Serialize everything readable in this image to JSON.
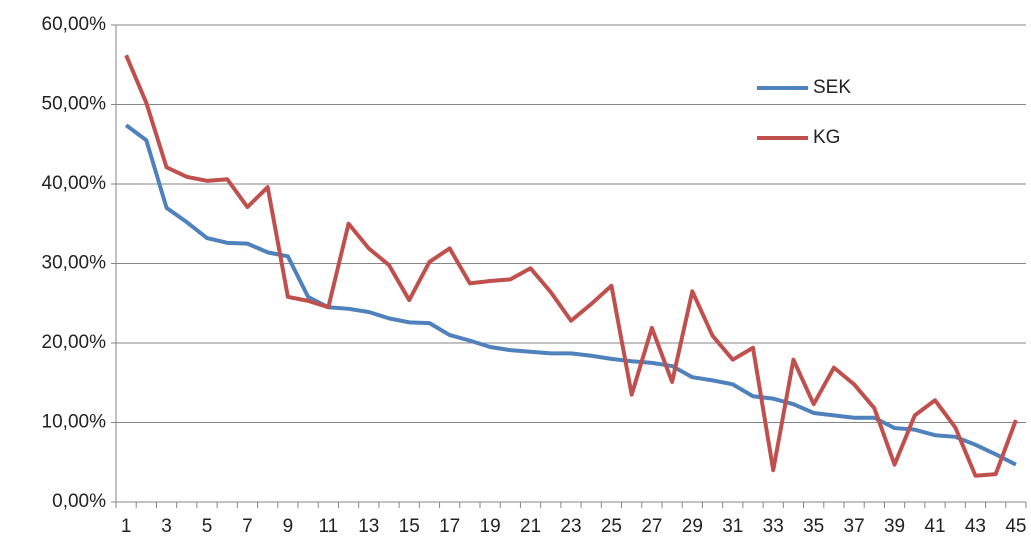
{
  "chart_data": {
    "type": "line",
    "categories": [
      1,
      null,
      3,
      null,
      5,
      null,
      7,
      null,
      9,
      null,
      11,
      null,
      13,
      null,
      15,
      null,
      17,
      null,
      19,
      null,
      21,
      null,
      23,
      null,
      25,
      null,
      27,
      null,
      29,
      null,
      31,
      null,
      33,
      null,
      35,
      null,
      37,
      null,
      39,
      null,
      41,
      null,
      43,
      null,
      45
    ],
    "series": [
      {
        "name": "SEK",
        "color": "#4f81bd",
        "values": [
          47.4,
          45.5,
          37.0,
          35.2,
          33.2,
          32.6,
          32.5,
          31.4,
          30.9,
          25.8,
          24.5,
          24.3,
          23.9,
          23.1,
          22.6,
          22.5,
          21.0,
          20.3,
          19.5,
          19.1,
          18.9,
          18.7,
          18.7,
          18.4,
          18.0,
          17.7,
          17.5,
          17.1,
          15.7,
          15.3,
          14.8,
          13.3,
          13.0,
          12.3,
          11.2,
          10.9,
          10.6,
          10.6,
          9.3,
          9.1,
          8.4,
          8.2,
          7.2,
          6.0,
          4.7
        ]
      },
      {
        "name": "KG",
        "color": "#c0504d",
        "values": [
          56.2,
          50.2,
          42.1,
          40.9,
          40.4,
          40.6,
          37.1,
          39.6,
          25.8,
          25.3,
          24.5,
          35.0,
          31.9,
          29.8,
          25.4,
          30.2,
          31.9,
          27.5,
          27.8,
          28.0,
          29.4,
          26.4,
          22.8,
          24.9,
          27.2,
          13.5,
          21.9,
          15.1,
          26.5,
          20.9,
          17.9,
          19.4,
          4.0,
          17.9,
          12.3,
          16.9,
          14.8,
          11.8,
          4.7,
          10.9,
          12.8,
          9.4,
          3.3,
          3.5,
          10.3
        ]
      }
    ],
    "ylim": [
      0,
      60
    ],
    "yticks": [
      {
        "value": 0,
        "label": "0,00%"
      },
      {
        "value": 10,
        "label": "10,00%"
      },
      {
        "value": 20,
        "label": "20,00%"
      },
      {
        "value": 30,
        "label": "30,00%"
      },
      {
        "value": 40,
        "label": "40,00%"
      },
      {
        "value": 50,
        "label": "50,00%"
      },
      {
        "value": 60,
        "label": "60,00%"
      }
    ],
    "grid": true,
    "legend": "upper-right"
  }
}
